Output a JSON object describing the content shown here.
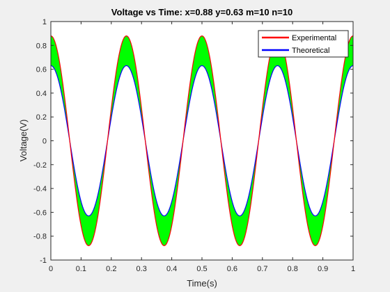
{
  "chart_data": {
    "type": "line",
    "title": "Voltage vs Time: x=0.88 y=0.63 m=10 n=10",
    "xlabel": "Time(s)",
    "ylabel": "Voltage(V)",
    "xlim": [
      0,
      1
    ],
    "ylim": [
      -1,
      1
    ],
    "xticks": [
      "0",
      "0.1",
      "0.2",
      "0.3",
      "0.4",
      "0.5",
      "0.6",
      "0.7",
      "0.8",
      "0.9",
      "1"
    ],
    "yticks": [
      "1",
      "0.8",
      "0.6",
      "0.4",
      "0.2",
      "0",
      "-0.2",
      "-0.4",
      "-0.6",
      "-0.8",
      "-1"
    ],
    "grid": false,
    "legend_position": "top-right",
    "fill_between": {
      "color": "#00ff00",
      "between": [
        "Experimental",
        "Theoretical"
      ]
    },
    "series": [
      {
        "name": "Experimental",
        "color": "#ff0000",
        "amplitude": 0.88,
        "frequency_hz": 4,
        "function": "cos"
      },
      {
        "name": "Theoretical",
        "color": "#0000ff",
        "amplitude": 0.63,
        "frequency_hz": 4,
        "function": "cos"
      }
    ]
  }
}
